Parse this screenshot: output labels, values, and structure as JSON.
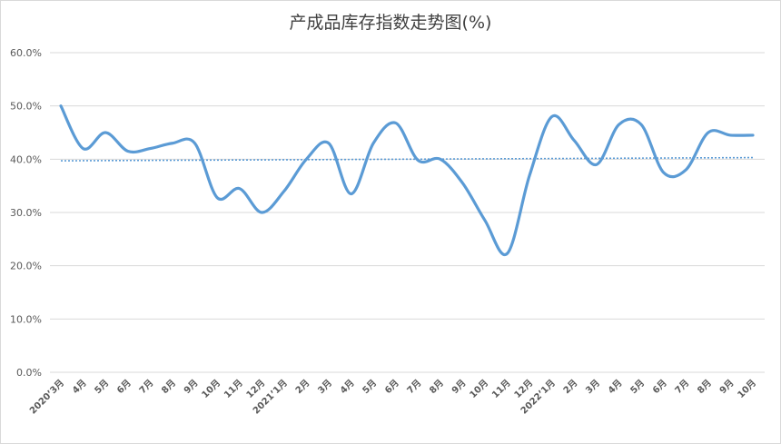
{
  "chart_data": {
    "type": "line",
    "title": "产成品库存指数走势图(%)",
    "xlabel": "",
    "ylabel": "",
    "ylim": [
      0,
      60
    ],
    "y_ticks": [
      "0.0%",
      "10.0%",
      "20.0%",
      "30.0%",
      "40.0%",
      "50.0%",
      "60.0%"
    ],
    "grid": "horizontal",
    "categories": [
      "2020’3月",
      "4月",
      "5月",
      "6月",
      "7月",
      "8月",
      "9月",
      "10月",
      "11月",
      "12月",
      "2021’1月",
      "2月",
      "3月",
      "4月",
      "5月",
      "6月",
      "7月",
      "8月",
      "9月",
      "10月",
      "11月",
      "12月",
      "2022’1月",
      "2月",
      "3月",
      "4月",
      "5月",
      "6月",
      "7月",
      "8月",
      "9月",
      "10月"
    ],
    "series": [
      {
        "values": [
          50.0,
          42.0,
          45.0,
          41.5,
          42.0,
          43.0,
          43.0,
          32.8,
          34.5,
          30.0,
          34.0,
          40.0,
          43.0,
          33.5,
          43.0,
          46.8,
          39.8,
          40.0,
          35.5,
          28.5,
          22.3,
          37.0,
          48.0,
          43.5,
          39.0,
          46.5,
          46.5,
          37.5,
          38.0,
          45.0,
          44.5,
          44.5
        ],
        "color": "#5b9bd5"
      }
    ],
    "trendline": {
      "start": 39.7,
      "end": 40.3,
      "color": "#5b9bd5",
      "style": "dotted"
    }
  }
}
